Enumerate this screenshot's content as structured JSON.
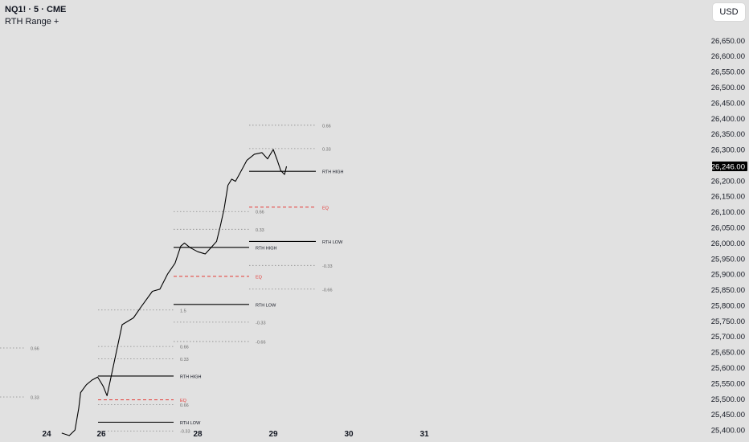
{
  "header": {
    "symbol": "NQ1! · 5 · CME",
    "indicator": "RTH Range +"
  },
  "currency_button": "USD",
  "price_axis": {
    "ticks": [
      "26,650.00",
      "26,600.00",
      "26,550.00",
      "26,500.00",
      "26,450.00",
      "26,400.00",
      "26,350.00",
      "26,300.00",
      "26,200.00",
      "26,150.00",
      "26,100.00",
      "26,050.00",
      "26,000.00",
      "25,950.00",
      "25,900.00",
      "25,850.00",
      "25,800.00",
      "25,750.00",
      "25,700.00",
      "25,650.00",
      "25,600.00",
      "25,550.00",
      "25,500.00",
      "25,450.00",
      "25,400.00"
    ],
    "current_price": "26,246.00"
  },
  "time_axis": {
    "ticks": [
      "24",
      "26",
      "28",
      "29",
      "30",
      "31"
    ]
  },
  "colors": {
    "background": "#e1e1e1",
    "candles": "#000000",
    "eq_line": "#e53935",
    "level_dotted": "#8a8a8a",
    "current_price_label_bg": "#000000"
  },
  "chart_data": {
    "type": "line",
    "title": "NQ1! · 5 · CME",
    "indicator": "RTH Range +",
    "ylim": [
      25370,
      26680
    ],
    "x_ticks": [
      "24",
      "26",
      "28",
      "29",
      "30",
      "31"
    ],
    "current_price": 26246,
    "sessions": [
      {
        "day": "24",
        "levels": [
          {
            "label": "0.66",
            "style": "dotted"
          },
          {
            "label": "0.33",
            "style": "dotted"
          }
        ]
      },
      {
        "day": "26",
        "levels": [
          {
            "label": "RTH HIGH",
            "price": 25573,
            "style": "solid"
          },
          {
            "label": "EQ",
            "price": 25497,
            "style": "dashed"
          },
          {
            "label": "0.66",
            "price": 25481,
            "style": "dotted"
          },
          {
            "label": "RTH LOW",
            "price": 25425,
            "style": "solid"
          },
          {
            "label": "-0.33",
            "price": 25397,
            "style": "dotted"
          }
        ]
      },
      {
        "day": "27",
        "levels": [
          {
            "label": "1.5",
            "price": 25785,
            "style": "dotted"
          },
          {
            "label": "0.66",
            "price": 25668,
            "style": "dotted"
          },
          {
            "label": "0.33",
            "price": 25628,
            "style": "dotted"
          }
        ]
      },
      {
        "day": "28",
        "levels": [
          {
            "label": "0.66",
            "price": 26101,
            "style": "dotted"
          },
          {
            "label": "0.33",
            "price": 26044,
            "style": "dotted"
          },
          {
            "label": "RTH HIGH",
            "price": 25986,
            "style": "solid"
          },
          {
            "label": "EQ",
            "price": 25893,
            "style": "dashed"
          },
          {
            "label": "RTH LOW",
            "price": 25803,
            "style": "solid"
          },
          {
            "label": "-0.33",
            "price": 25746,
            "style": "dotted"
          },
          {
            "label": "-0.66",
            "price": 25684,
            "style": "dotted"
          }
        ]
      },
      {
        "day": "29",
        "levels": [
          {
            "label": "0.66",
            "price": 26378,
            "style": "dotted"
          },
          {
            "label": "0.33",
            "price": 26303,
            "style": "dotted"
          },
          {
            "label": "RTH HIGH",
            "price": 26230,
            "style": "solid"
          },
          {
            "label": "EQ",
            "price": 26115,
            "style": "dashed"
          },
          {
            "label": "RTH LOW",
            "price": 26005,
            "style": "solid"
          },
          {
            "label": "-0.33",
            "price": 25928,
            "style": "dotted"
          },
          {
            "label": "-0.66",
            "price": 25852,
            "style": "dotted"
          }
        ]
      }
    ],
    "series": [
      {
        "type": "line",
        "points": [
          [
            24.4,
            25390
          ],
          [
            24.6,
            25382
          ],
          [
            24.75,
            25400
          ],
          [
            24.85,
            25470
          ],
          [
            24.9,
            25520
          ],
          [
            25.05,
            25545
          ],
          [
            25.2,
            25560
          ],
          [
            25.35,
            25570
          ],
          [
            25.5,
            25540
          ],
          [
            25.6,
            25510
          ],
          [
            26.0,
            25738
          ],
          [
            26.3,
            25760
          ],
          [
            26.5,
            25795
          ],
          [
            26.8,
            25845
          ],
          [
            27.0,
            25852
          ],
          [
            27.2,
            25900
          ],
          [
            27.4,
            25935
          ],
          [
            27.55,
            25990
          ],
          [
            27.65,
            26000
          ],
          [
            27.8,
            25985
          ],
          [
            28.0,
            25972
          ],
          [
            28.2,
            25965
          ],
          [
            28.35,
            25985
          ],
          [
            28.5,
            26005
          ],
          [
            28.6,
            26055
          ],
          [
            28.7,
            26110
          ],
          [
            28.8,
            26185
          ],
          [
            28.9,
            26205
          ],
          [
            29.0,
            26198
          ],
          [
            29.1,
            26220
          ],
          [
            29.3,
            26265
          ],
          [
            29.5,
            26285
          ],
          [
            29.7,
            26290
          ],
          [
            29.85,
            26270
          ],
          [
            30.0,
            26300
          ],
          [
            30.1,
            26268
          ],
          [
            30.2,
            26232
          ],
          [
            30.3,
            26220
          ],
          [
            30.35,
            26246
          ]
        ]
      }
    ]
  }
}
